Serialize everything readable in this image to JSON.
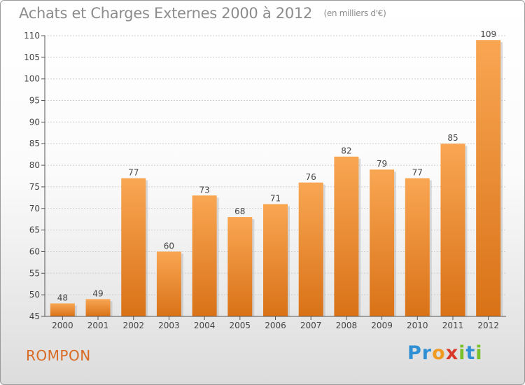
{
  "header": {
    "title": "Achats et Charges Externes 2000 à 2012",
    "unit": "(en milliers d'€)"
  },
  "footer": {
    "commune": "ROMPON",
    "logo": "Proxiti",
    "logo_letters": [
      {
        "ch": "P",
        "color": "#2f8fd4"
      },
      {
        "ch": "r",
        "color": "#2f8fd4"
      },
      {
        "ch": "o",
        "color": "#f09a22"
      },
      {
        "ch": "x",
        "color": "#d93a2a"
      },
      {
        "ch": "i",
        "color": "#7bbf2a"
      },
      {
        "ch": "t",
        "color": "#2f8fd4"
      },
      {
        "ch": "i",
        "color": "#7bbf2a"
      }
    ]
  },
  "chart_data": {
    "type": "bar",
    "title": "Achats et Charges Externes 2000 à 2012",
    "ylabel": "",
    "xlabel": "",
    "categories": [
      "2000",
      "2001",
      "2002",
      "2003",
      "2004",
      "2005",
      "2006",
      "2007",
      "2008",
      "2009",
      "2010",
      "2011",
      "2012"
    ],
    "values": [
      48,
      49,
      77,
      60,
      73,
      68,
      71,
      76,
      82,
      79,
      77,
      85,
      109
    ],
    "ylim": [
      45,
      110
    ],
    "yticks": [
      45,
      50,
      55,
      60,
      65,
      70,
      75,
      80,
      85,
      90,
      95,
      100,
      105,
      110
    ],
    "grid": true,
    "colors": {
      "bar_top": "#f9a653",
      "bar_bottom": "#d97217",
      "grid": "#cfcfcf"
    }
  }
}
